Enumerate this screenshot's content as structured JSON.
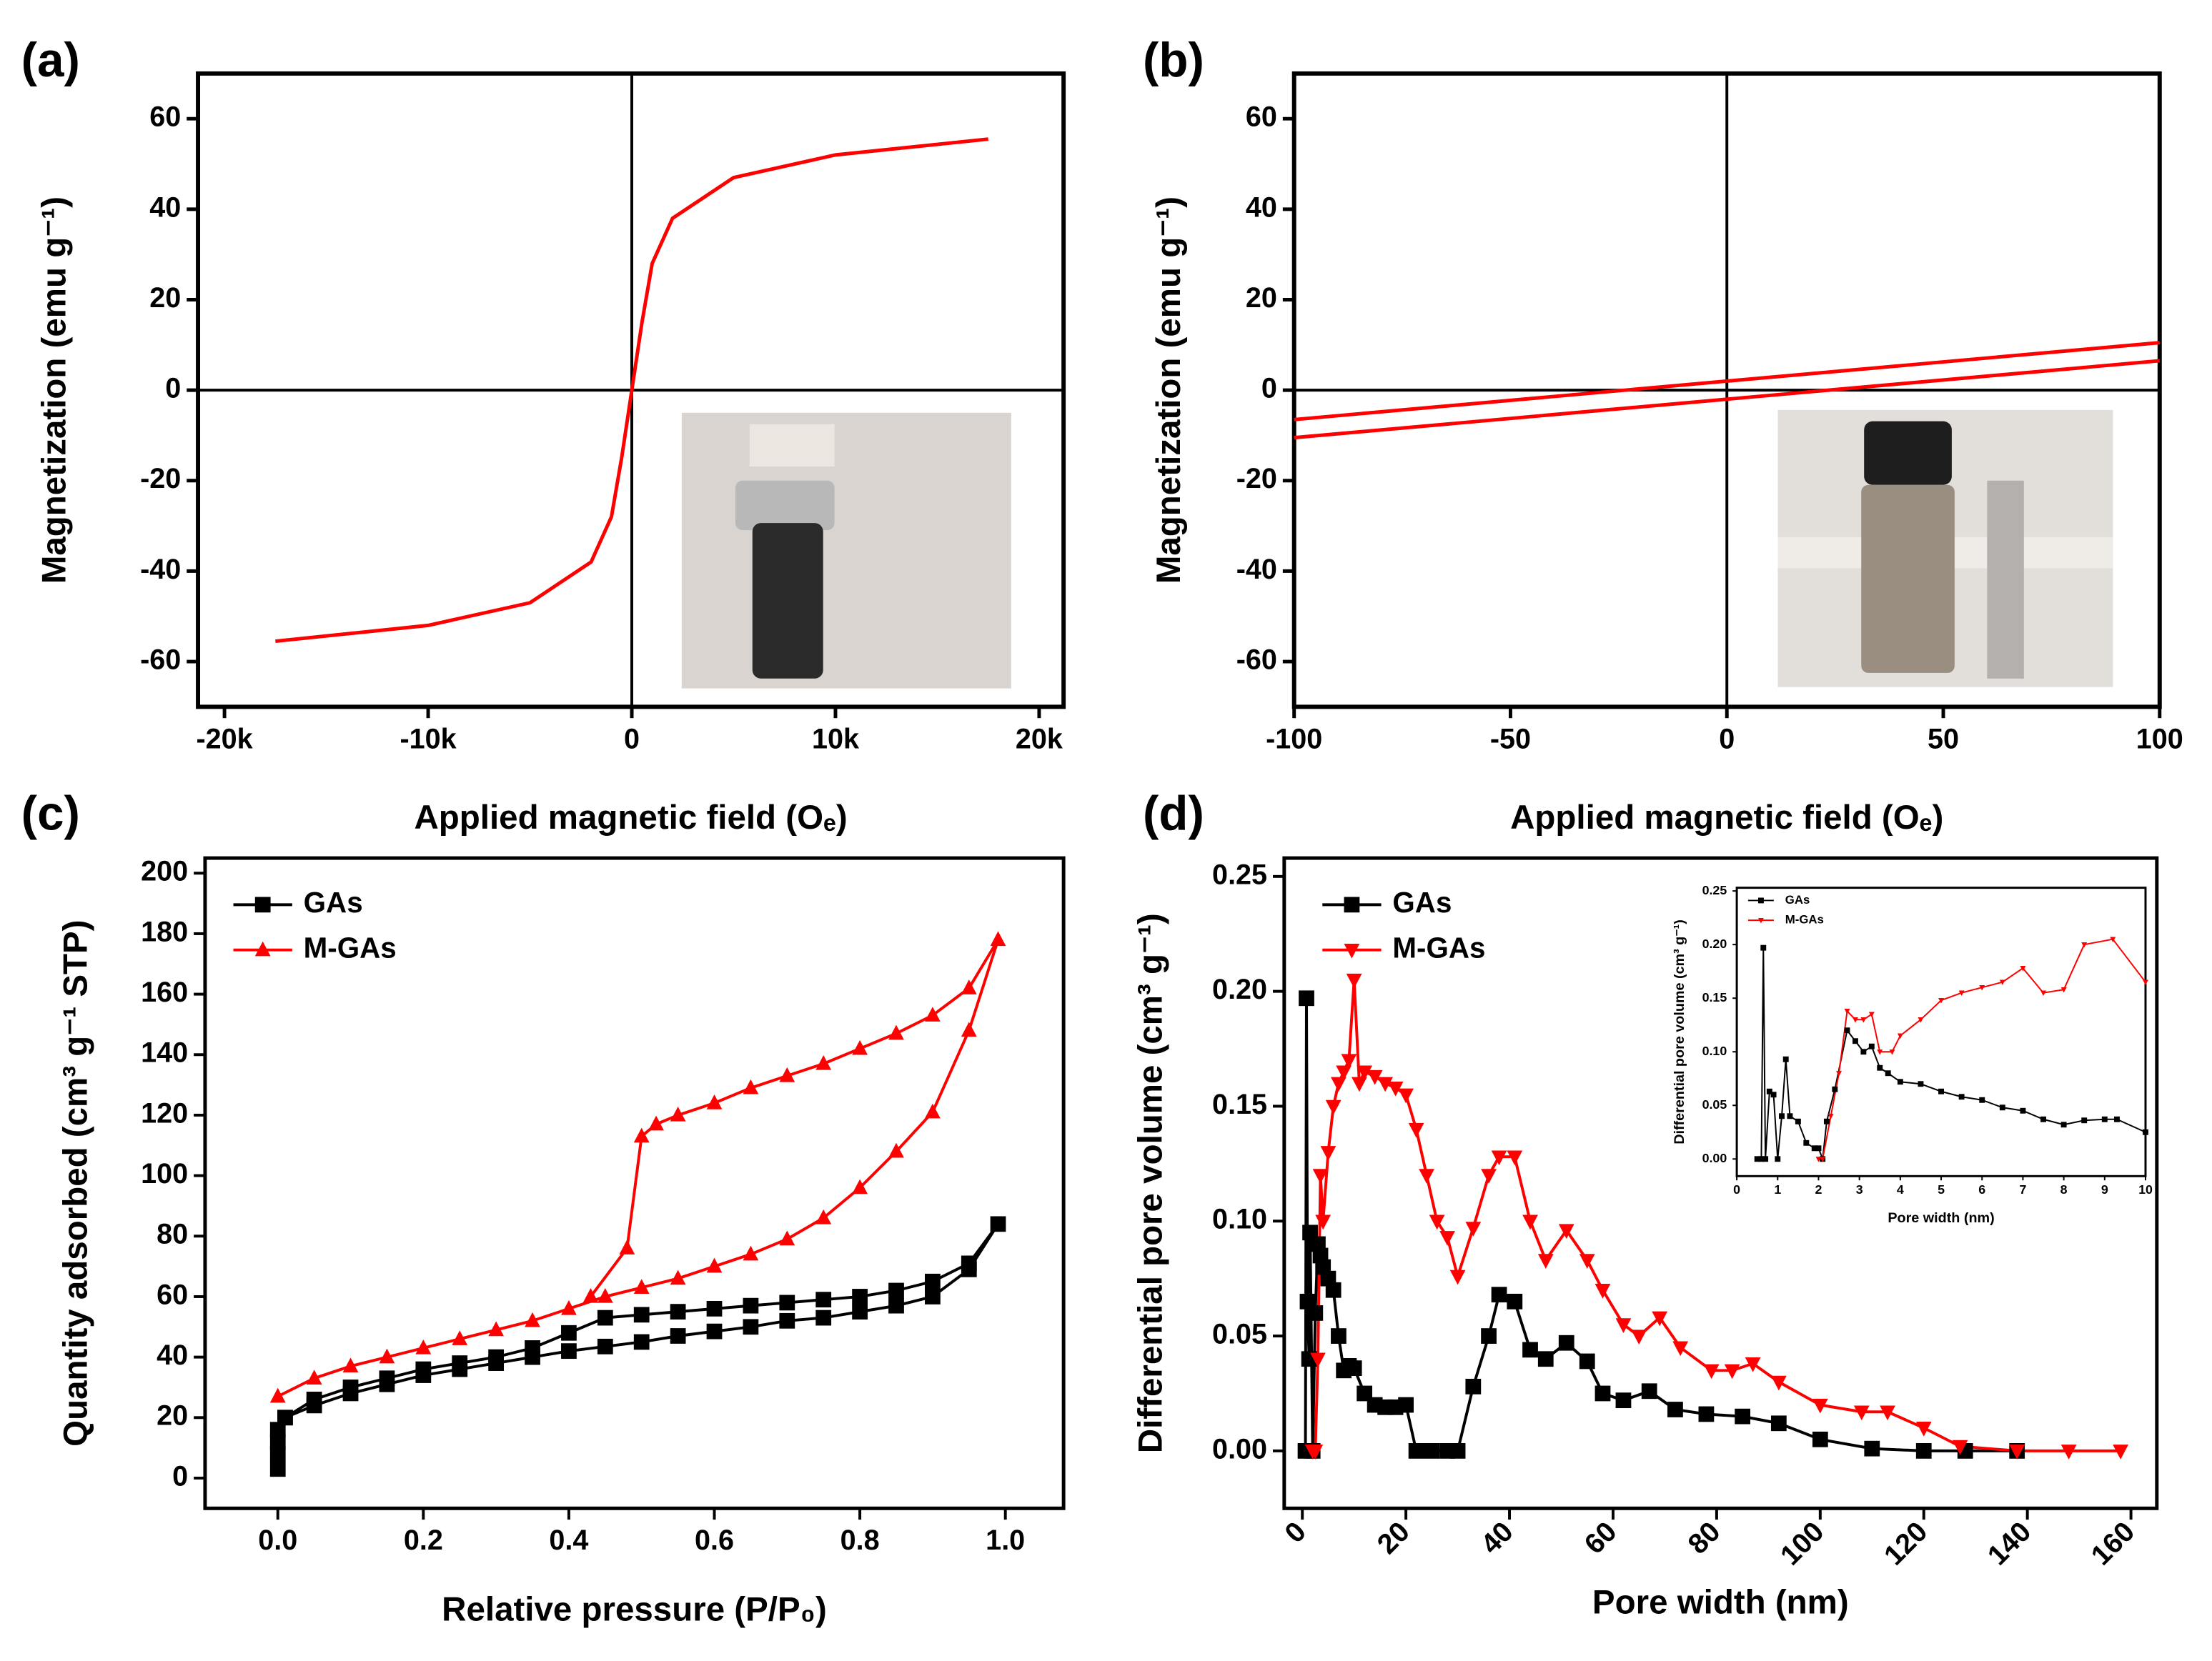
{
  "chart_data": [
    {
      "type": "line",
      "label": "(a)",
      "x_label": "Applied magnetic field (Oₑ)",
      "y_label": "Magnetization (emu g⁻¹)",
      "xlim": [
        -21300,
        21200
      ],
      "ylim": [
        -70,
        70
      ],
      "xticks": [
        {
          "value": -20000,
          "label": "-20k"
        },
        {
          "value": -10000,
          "label": "-10k"
        },
        0,
        {
          "value": 10000,
          "label": "10k"
        },
        {
          "value": 20000,
          "label": "20k"
        }
      ],
      "yticks": [
        -60,
        -40,
        -20,
        0,
        20,
        40,
        60
      ],
      "zero_lines": true,
      "series": [
        {
          "color": "#ff0000",
          "x": [
            -17500,
            -10000,
            -5000,
            -2000,
            -1000,
            -500,
            0,
            500,
            1000,
            2000,
            5000,
            10000,
            17500
          ],
          "values": [
            -55.5,
            -52,
            -47,
            -38,
            -28,
            -15,
            0,
            15,
            28,
            38,
            47,
            52,
            55.5
          ]
        }
      ]
    },
    {
      "type": "line",
      "label": "(b)",
      "x_label": "Applied magnetic field (Oₑ)",
      "y_label": "Magnetization (emu g⁻¹)",
      "xlim": [
        -100,
        100
      ],
      "ylim": [
        -70,
        70
      ],
      "xticks": [
        -100,
        -50,
        0,
        50,
        100
      ],
      "yticks": [
        -60,
        -40,
        -20,
        0,
        20,
        40,
        60
      ],
      "zero_lines": true,
      "series": [
        {
          "color": "#ff0000",
          "x": [
            -100,
            100
          ],
          "values": [
            -6.5,
            10.5
          ]
        },
        {
          "color": "#ff0000",
          "x": [
            -100,
            100
          ],
          "values": [
            -10.5,
            6.5
          ]
        }
      ]
    },
    {
      "type": "line",
      "label": "(c)",
      "x_label": "Relative pressure (P/P₀)",
      "y_label": "Quantity adsorbed (cm³ g⁻¹ STP)",
      "xlim": [
        -0.1,
        1.08
      ],
      "ylim": [
        -10,
        205
      ],
      "xticks": [
        {
          "value": 0,
          "label": "0.0"
        },
        0.2,
        0.4,
        0.6,
        0.8,
        {
          "value": 1,
          "label": "1.0"
        }
      ],
      "yticks": [
        0,
        20,
        40,
        60,
        80,
        100,
        120,
        140,
        160,
        180,
        200
      ],
      "legend": "upper left",
      "series": [
        {
          "name": "GAs",
          "color": "#000000",
          "marker": "square",
          "x": [
            0,
            0,
            0,
            0,
            0.01,
            0.05,
            0.1,
            0.15,
            0.2,
            0.25,
            0.3,
            0.35,
            0.4,
            0.45,
            0.5,
            0.55,
            0.6,
            0.65,
            0.7,
            0.75,
            0.8,
            0.85,
            0.9,
            0.95,
            0.99,
            0.95,
            0.9,
            0.85,
            0.8,
            0.75,
            0.7,
            0.65,
            0.6,
            0.55,
            0.5,
            0.45,
            0.4,
            0.35,
            0.3,
            0.25,
            0.2,
            0.15,
            0.1,
            0.05,
            0.01
          ],
          "values": [
            3,
            8,
            12,
            16,
            20,
            24,
            28,
            31,
            34,
            36,
            38,
            40,
            42,
            43.5,
            45,
            47,
            48.5,
            50,
            52,
            53,
            55,
            57,
            60,
            69,
            84,
            71,
            65,
            62,
            60,
            59,
            58,
            57,
            56,
            55,
            54,
            53,
            48,
            43,
            40,
            38,
            36,
            33,
            30,
            26,
            20
          ]
        },
        {
          "name": "M-GAs",
          "color": "#ff0000",
          "marker": "triangle-up",
          "x": [
            0,
            0.05,
            0.1,
            0.15,
            0.2,
            0.25,
            0.3,
            0.35,
            0.4,
            0.45,
            0.5,
            0.55,
            0.6,
            0.65,
            0.7,
            0.75,
            0.8,
            0.85,
            0.9,
            0.95,
            0.99,
            0.95,
            0.9,
            0.85,
            0.8,
            0.75,
            0.7,
            0.65,
            0.6,
            0.55,
            0.52,
            0.5,
            0.48,
            0.43
          ],
          "values": [
            27,
            33,
            37,
            40,
            43,
            46,
            49,
            52,
            56,
            60,
            63,
            66,
            70,
            74,
            79,
            86,
            96,
            108,
            121,
            148,
            178,
            162,
            153,
            147,
            142,
            137,
            133,
            129,
            124,
            120,
            117,
            113,
            76,
            60
          ]
        }
      ]
    },
    {
      "type": "line",
      "label": "(d)",
      "x_label": "Pore width (nm)",
      "y_label": "Differential pore volume (cm³ g⁻¹)",
      "xlim": [
        -3.5,
        165
      ],
      "ylim": [
        -0.025,
        0.258
      ],
      "xticks": [
        0,
        20,
        40,
        60,
        80,
        100,
        120,
        140,
        160
      ],
      "yticks": [
        {
          "value": 0,
          "label": "0.00"
        },
        {
          "value": 0.05,
          "label": "0.05"
        },
        {
          "value": 0.1,
          "label": "0.10"
        },
        {
          "value": 0.15,
          "label": "0.15"
        },
        {
          "value": 0.2,
          "label": "0.20"
        },
        {
          "value": 0.25,
          "label": "0.25"
        }
      ],
      "legend": "upper left",
      "series": [
        {
          "name": "GAs",
          "color": "#000000",
          "marker": "square",
          "x": [
            0.6,
            0.8,
            1,
            1.3,
            1.5,
            2,
            2.5,
            3,
            3.5,
            4,
            5,
            6,
            7,
            8,
            9,
            10,
            12,
            14,
            16,
            18,
            20,
            22,
            25,
            28,
            30,
            33,
            36,
            38,
            41,
            44,
            47,
            51,
            55,
            58,
            62,
            67,
            72,
            78,
            85,
            92,
            100,
            110,
            120,
            128,
            138
          ],
          "values": [
            0,
            0.197,
            0.065,
            0.04,
            0.095,
            0,
            0.06,
            0.09,
            0.085,
            0.08,
            0.075,
            0.07,
            0.05,
            0.035,
            0.037,
            0.036,
            0.025,
            0.02,
            0.019,
            0.019,
            0.02,
            0,
            0,
            0,
            0,
            0.028,
            0.05,
            0.068,
            0.065,
            0.044,
            0.04,
            0.047,
            0.039,
            0.025,
            0.022,
            0.026,
            0.018,
            0.016,
            0.015,
            0.012,
            0.005,
            0.001,
            0,
            0,
            0
          ]
        },
        {
          "name": "M-GAs",
          "color": "#ff0000",
          "marker": "triangle-down",
          "x": [
            2,
            2.5,
            3,
            3.5,
            4,
            5,
            6,
            7,
            8,
            9,
            10,
            11,
            12,
            14,
            16,
            18,
            20,
            22,
            24,
            26,
            28,
            30,
            33,
            36,
            38,
            41,
            44,
            47,
            51,
            55,
            58,
            62,
            65,
            69,
            73,
            79,
            83,
            87,
            92,
            100,
            108,
            113,
            120,
            127,
            138,
            148,
            158
          ],
          "values": [
            0,
            0,
            0.04,
            0.12,
            0.1,
            0.13,
            0.15,
            0.16,
            0.165,
            0.17,
            0.205,
            0.16,
            0.165,
            0.163,
            0.16,
            0.158,
            0.155,
            0.14,
            0.12,
            0.1,
            0.093,
            0.076,
            0.097,
            0.12,
            0.128,
            0.128,
            0.1,
            0.083,
            0.096,
            0.083,
            0.07,
            0.055,
            0.05,
            0.058,
            0.045,
            0.035,
            0.035,
            0.038,
            0.03,
            0.02,
            0.017,
            0.017,
            0.01,
            0.002,
            0,
            0,
            0
          ]
        }
      ]
    },
    {
      "type": "line",
      "x_label": "Pore width (nm)",
      "y_label": "Differential pore volume (cm³ g⁻¹)",
      "xlim": [
        0,
        10
      ],
      "ylim": [
        -0.016,
        0.253
      ],
      "xticks": [
        0,
        1,
        2,
        3,
        4,
        5,
        6,
        7,
        8,
        9,
        10
      ],
      "yticks": [
        {
          "value": 0,
          "label": "0.00"
        },
        {
          "value": 0.05,
          "label": "0.05"
        },
        {
          "value": 0.1,
          "label": "0.10"
        },
        {
          "value": 0.15,
          "label": "0.15"
        },
        {
          "value": 0.2,
          "label": "0.20"
        },
        {
          "value": 0.25,
          "label": "0.25"
        }
      ],
      "legend": "upper left",
      "series": [
        {
          "name": "GAs",
          "color": "#000000",
          "marker": "square",
          "x": [
            0.5,
            0.6,
            0.65,
            0.7,
            0.8,
            0.9,
            1,
            1.1,
            1.2,
            1.3,
            1.5,
            1.7,
            1.9,
            2,
            2.1,
            2.2,
            2.4,
            2.7,
            2.9,
            3.1,
            3.3,
            3.5,
            3.7,
            4,
            4.5,
            5,
            5.5,
            6,
            6.5,
            7,
            7.5,
            8,
            8.5,
            9,
            9.3,
            10
          ],
          "values": [
            0,
            0,
            0.197,
            0,
            0.063,
            0.06,
            0,
            0.04,
            0.093,
            0.04,
            0.035,
            0.015,
            0.01,
            0.01,
            0,
            0.035,
            0.065,
            0.12,
            0.11,
            0.1,
            0.105,
            0.085,
            0.08,
            0.072,
            0.07,
            0.063,
            0.058,
            0.055,
            0.048,
            0.045,
            0.037,
            0.032,
            0.036,
            0.037,
            0.037,
            0.025
          ]
        },
        {
          "name": "M-GAs",
          "color": "#ff0000",
          "marker": "triangle-down",
          "x": [
            2,
            2.1,
            2.3,
            2.5,
            2.7,
            2.9,
            3.1,
            3.3,
            3.5,
            3.8,
            4,
            4.5,
            5,
            5.5,
            6,
            6.5,
            7,
            7.5,
            8,
            8.5,
            9.2,
            10
          ],
          "values": [
            0,
            0,
            0.04,
            0.08,
            0.138,
            0.13,
            0.13,
            0.135,
            0.1,
            0.1,
            0.115,
            0.13,
            0.148,
            0.155,
            0.16,
            0.165,
            0.178,
            0.155,
            0.158,
            0.2,
            0.205,
            0.165
          ]
        }
      ]
    }
  ]
}
